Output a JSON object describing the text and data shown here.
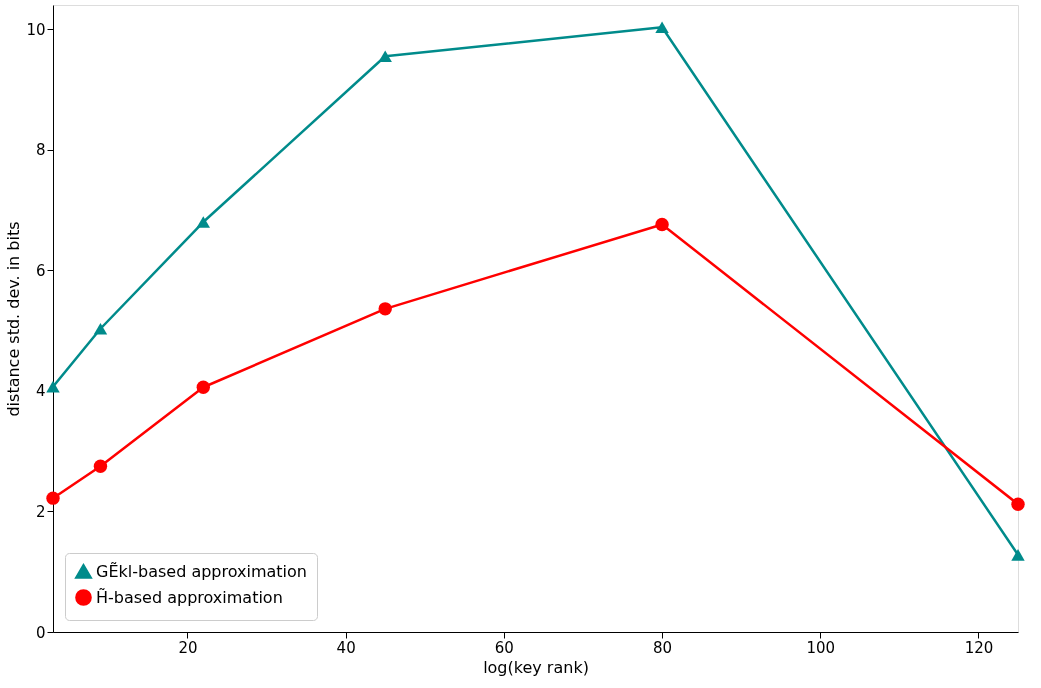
{
  "chart_data": {
    "type": "line",
    "xlabel": "log(key rank)",
    "ylabel": "distance std. dev. in bits",
    "x": [
      3,
      9,
      22,
      45,
      80,
      125
    ],
    "series": [
      {
        "name": "GẼkl-based approximation",
        "color": "#008b8b",
        "marker": "triangle",
        "values": [
          4.07,
          5.03,
          6.8,
          9.55,
          10.03,
          1.28
        ]
      },
      {
        "name": "H̃-based approximation",
        "color": "#ff0000",
        "marker": "circle",
        "values": [
          2.22,
          2.75,
          4.06,
          5.36,
          6.76,
          2.12
        ]
      }
    ],
    "xlim": [
      3,
      125
    ],
    "xticks": [
      20,
      40,
      60,
      80,
      100,
      120
    ],
    "ylim": [
      0,
      10.4
    ],
    "yticks": [
      0,
      2,
      4,
      6,
      8,
      10
    ],
    "grid": false,
    "legend": "bottom left"
  }
}
